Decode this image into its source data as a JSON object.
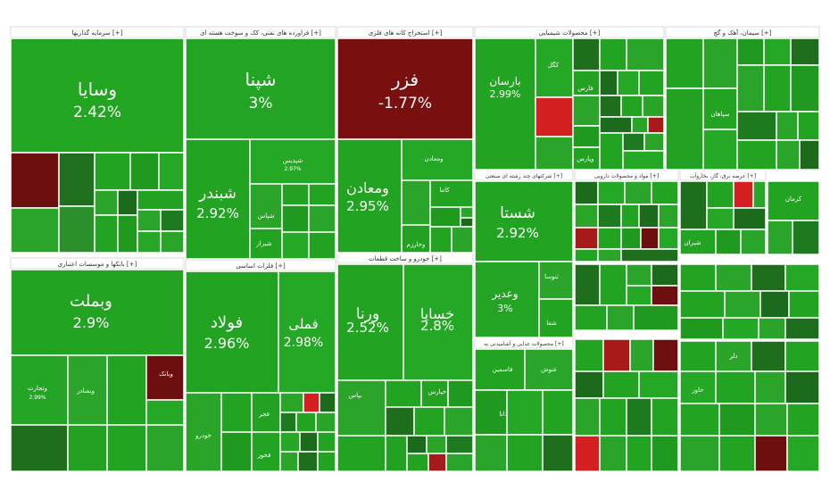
{
  "chart_data": {
    "type": "treemap",
    "title": "",
    "colors": {
      "up": "#1fa21f",
      "up_bright": "#2fbf2a",
      "up_dark": "#1e6e1e",
      "down": "#7a0f0f",
      "down_bright": "#d42020",
      "header_bg": "#ffffff",
      "border": "#ffffff"
    },
    "sectors": [
      {
        "name": "سرمایه گذاریها [+]"
      },
      {
        "name": "فراورده های نفتی، کک و سوخت هسته ای [+]"
      },
      {
        "name": "استخراج کانه های فلزی [+]"
      },
      {
        "name": "محصولات شیمیایی [+]"
      },
      {
        "name": "سیمان، آهک و گچ [+]"
      },
      {
        "name": "بانکها و موسسات اعتباری [+]"
      },
      {
        "name": "فلزات اساسی [+]"
      },
      {
        "name": "خودرو و ساخت قطعات [+]"
      },
      {
        "name": "شرکتهای چند رشته ای صنعتی [+]"
      },
      {
        "name": "مواد و محصولات دارویی [+]"
      },
      {
        "name": "عرضه برق، گاز، بخاروآب [+]"
      },
      {
        "name": "محصولات غذایی و آشامیدنی به [+]"
      }
    ],
    "symbols": [
      {
        "name": "وسایا",
        "change": "2.42%"
      },
      {
        "name": "شپنا",
        "change": "3%"
      },
      {
        "name": "فزر",
        "change": "-1.77%"
      },
      {
        "name": "بارسان",
        "change": "2.99%"
      },
      {
        "name": "شبندر",
        "change": "2.92%"
      },
      {
        "name": "ومعادن",
        "change": "2.95%"
      },
      {
        "name": "شستا",
        "change": "2.92%"
      },
      {
        "name": "وبملت",
        "change": "2.9%"
      },
      {
        "name": "فولاد",
        "change": "2.96%"
      },
      {
        "name": "فملی",
        "change": "2.98%"
      },
      {
        "name": "ورنا",
        "change": "2.52%"
      },
      {
        "name": "خساپا",
        "change": "2.8%"
      },
      {
        "name": "وعدیر",
        "change": "3%"
      },
      {
        "name": "شپدیس",
        "change": "2.97%"
      },
      {
        "name": "وتجارت",
        "change": "2.99%"
      }
    ],
    "small_labels": [
      "ومعادن",
      "فارس",
      "کگل",
      "وپارس",
      "شیراز",
      "وبصادر",
      "بپاس",
      "کاما",
      "وخارزم",
      "خودرو",
      "کرمان",
      "سپاهان",
      "شپاس",
      "وبانک",
      "خپارس",
      "فخوز",
      "فجر",
      "دانا",
      "شفا",
      "ثنوسا",
      "فاسمین",
      "غنوش",
      "خاور",
      "دلر",
      "شیران"
    ]
  }
}
